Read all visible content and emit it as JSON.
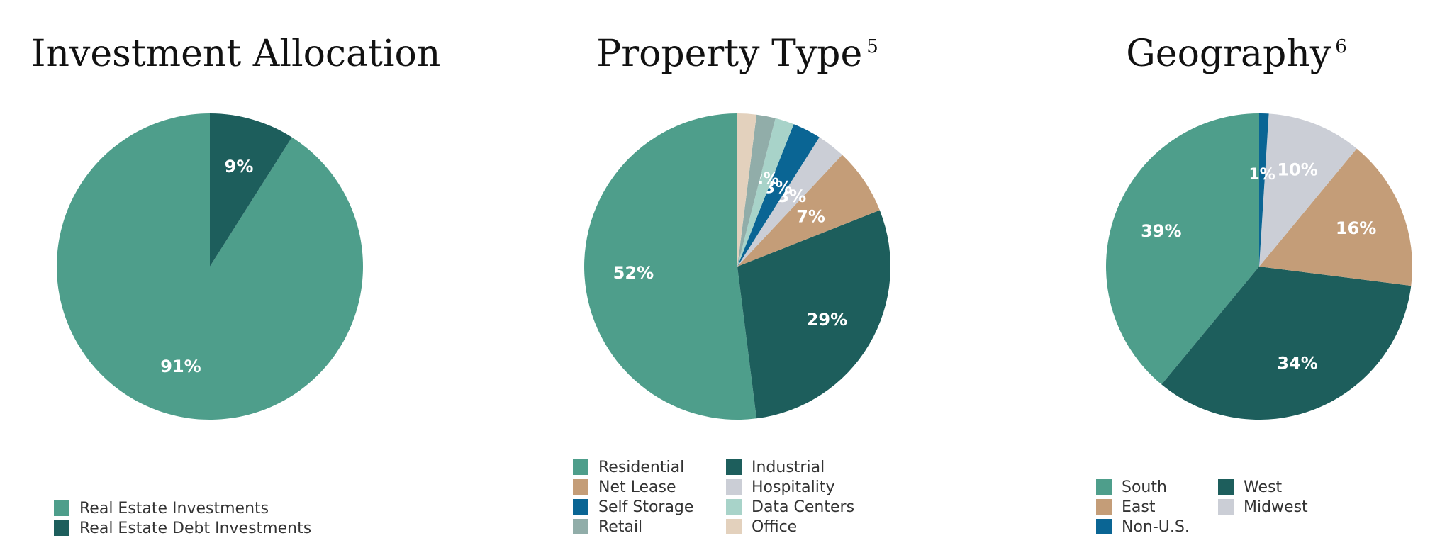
{
  "chart_data": [
    {
      "type": "pie",
      "title": "Investment Allocation",
      "title_note": "",
      "slices": [
        {
          "label": "Real Estate Investments",
          "value": 91,
          "display": "91%",
          "color": "#4e9e8b"
        },
        {
          "label": "Real Estate Debt Investments",
          "value": 9,
          "display": "9%",
          "color": "#1d5e5c"
        }
      ]
    },
    {
      "type": "pie",
      "title": "Property Type",
      "title_note": "5",
      "slices": [
        {
          "label": "Residential",
          "value": 52,
          "display": "52%",
          "color": "#4e9e8b"
        },
        {
          "label": "Industrial",
          "value": 29,
          "display": "29%",
          "color": "#1d5e5c"
        },
        {
          "label": "Net Lease",
          "value": 7,
          "display": "7%",
          "color": "#c49d78"
        },
        {
          "label": "Hospitality",
          "value": 3,
          "display": "3%",
          "color": "#cbced6"
        },
        {
          "label": "Self Storage",
          "value": 3,
          "display": "3%",
          "color": "#0a6594"
        },
        {
          "label": "Data Centers",
          "value": 2,
          "display": "2%",
          "color": "#a8d3c9"
        },
        {
          "label": "Retail",
          "value": 2,
          "display": "",
          "color": "#91ada9"
        },
        {
          "label": "Office",
          "value": 2,
          "display": "",
          "color": "#e3d1bd"
        }
      ]
    },
    {
      "type": "pie",
      "title": "Geography",
      "title_note": "6",
      "slices": [
        {
          "label": "South",
          "value": 39,
          "display": "39%",
          "color": "#4e9e8b"
        },
        {
          "label": "West",
          "value": 34,
          "display": "34%",
          "color": "#1d5e5c"
        },
        {
          "label": "East",
          "value": 16,
          "display": "16%",
          "color": "#c49d78"
        },
        {
          "label": "Midwest",
          "value": 10,
          "display": "10%",
          "color": "#cbced6"
        },
        {
          "label": "Non-U.S.",
          "value": 1,
          "display": "1%",
          "color": "#0a6594"
        }
      ]
    }
  ]
}
